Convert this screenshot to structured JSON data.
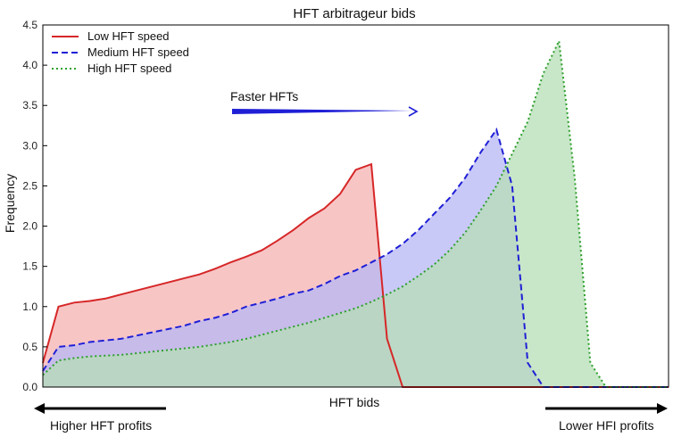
{
  "chart_data": {
    "type": "area",
    "title": "HFT arbitrageur bids",
    "xlabel": "HFT bids",
    "ylabel": "Frequency",
    "x": [
      0.0,
      0.2,
      0.4,
      0.6,
      0.8,
      1.0,
      1.2,
      1.4,
      1.6,
      1.8,
      2.0,
      2.2,
      2.4,
      2.6,
      2.8,
      3.0,
      3.2,
      3.4,
      3.6,
      3.8,
      4.0,
      4.2,
      4.4,
      4.6,
      4.8,
      5.0,
      5.2,
      5.4,
      5.6,
      5.8,
      6.0,
      6.2,
      6.4,
      6.6,
      6.8,
      7.0,
      7.2,
      7.4,
      7.6,
      7.8,
      8.0
    ],
    "xlim": [
      0,
      8.0
    ],
    "ylim": [
      0,
      4.5
    ],
    "yticks": [
      "0.0",
      "0.5",
      "1.0",
      "1.5",
      "2.0",
      "2.5",
      "3.0",
      "3.5",
      "4.0",
      "4.5"
    ],
    "grid": false,
    "legend_position": "top-left",
    "series": [
      {
        "name": "Low HFT speed",
        "color": "#d62728",
        "fill": "#f6b1b1",
        "line_style": "solid",
        "values": [
          0.3,
          1.0,
          1.05,
          1.07,
          1.1,
          1.15,
          1.2,
          1.25,
          1.3,
          1.35,
          1.4,
          1.47,
          1.55,
          1.62,
          1.7,
          1.82,
          1.95,
          2.1,
          2.22,
          2.4,
          2.7,
          2.77,
          0.6,
          0.0,
          0.0,
          0.0,
          0.0,
          0.0,
          0.0,
          0.0,
          0.0,
          0.0,
          0.0,
          0.0,
          0.0,
          0.0,
          0.0,
          0.0,
          0.0,
          0.0,
          0.0
        ]
      },
      {
        "name": "Medium HFT speed",
        "color": "#1f1fd6",
        "fill": "#b7b7f6",
        "line_style": "dashed",
        "values": [
          0.2,
          0.5,
          0.52,
          0.56,
          0.58,
          0.6,
          0.64,
          0.68,
          0.72,
          0.76,
          0.82,
          0.86,
          0.92,
          1.0,
          1.05,
          1.1,
          1.16,
          1.2,
          1.28,
          1.38,
          1.45,
          1.55,
          1.65,
          1.78,
          1.95,
          2.15,
          2.35,
          2.6,
          2.92,
          3.2,
          2.5,
          0.3,
          0.0,
          0.0,
          0.0,
          0.0,
          0.0,
          0.0,
          0.0,
          0.0,
          0.0
        ]
      },
      {
        "name": "High HFT speed",
        "color": "#2ca02c",
        "fill": "#b5deb5",
        "line_style": "dash-dot",
        "values": [
          0.15,
          0.33,
          0.36,
          0.38,
          0.39,
          0.4,
          0.42,
          0.44,
          0.46,
          0.48,
          0.5,
          0.53,
          0.56,
          0.6,
          0.65,
          0.7,
          0.75,
          0.8,
          0.86,
          0.92,
          0.98,
          1.06,
          1.15,
          1.25,
          1.38,
          1.52,
          1.7,
          1.92,
          2.2,
          2.5,
          2.9,
          3.3,
          3.9,
          4.3,
          2.6,
          0.3,
          0.0,
          0.0,
          0.0,
          0.0,
          0.0
        ]
      }
    ],
    "annotations": {
      "faster_arrow_label": "Faster HFTs",
      "left_arrow_label": "Higher HFT profits",
      "right_arrow_label": "Lower HFI profits"
    }
  }
}
